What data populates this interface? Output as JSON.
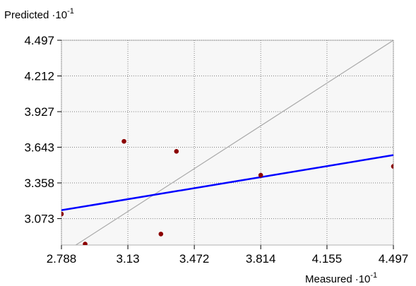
{
  "chart_data": {
    "type": "scatter",
    "xlabel_prefix": "Measured",
    "ylabel_prefix": "Predicted",
    "axis_scale_base": "·10",
    "axis_scale_exp": "-1",
    "xlim": [
      2.788,
      4.497
    ],
    "ylim": [
      2.862,
      4.497
    ],
    "x_ticks": [
      2.788,
      3.13,
      3.472,
      3.814,
      4.155,
      4.497
    ],
    "x_tick_labels": [
      "2.788",
      "3.13",
      "3.472",
      "3.814",
      "4.155",
      "4.497"
    ],
    "y_ticks": [
      3.073,
      3.358,
      3.643,
      3.927,
      4.212,
      4.497
    ],
    "y_tick_labels": [
      "3.073",
      "3.358",
      "3.643",
      "3.927",
      "4.212",
      "4.497"
    ],
    "grid": true,
    "points": [
      {
        "x": 2.788,
        "y": 3.11
      },
      {
        "x": 2.91,
        "y": 2.87
      },
      {
        "x": 3.11,
        "y": 3.69
      },
      {
        "x": 3.3,
        "y": 2.95
      },
      {
        "x": 3.38,
        "y": 3.61
      },
      {
        "x": 3.814,
        "y": 3.42
      },
      {
        "x": 4.497,
        "y": 3.49
      }
    ],
    "regression_line": {
      "x": [
        2.788,
        4.497
      ],
      "y": [
        3.14,
        3.58
      ]
    },
    "identity_line": {
      "x": [
        2.788,
        4.497
      ],
      "y": [
        2.788,
        4.497
      ]
    },
    "colors": {
      "points": "#8b0000",
      "regression": "#0000ff",
      "identity": "#a9a9a9",
      "grid": "#808080",
      "plot_bg": "#f7f7f7",
      "frame": "#b0b0b0"
    }
  }
}
